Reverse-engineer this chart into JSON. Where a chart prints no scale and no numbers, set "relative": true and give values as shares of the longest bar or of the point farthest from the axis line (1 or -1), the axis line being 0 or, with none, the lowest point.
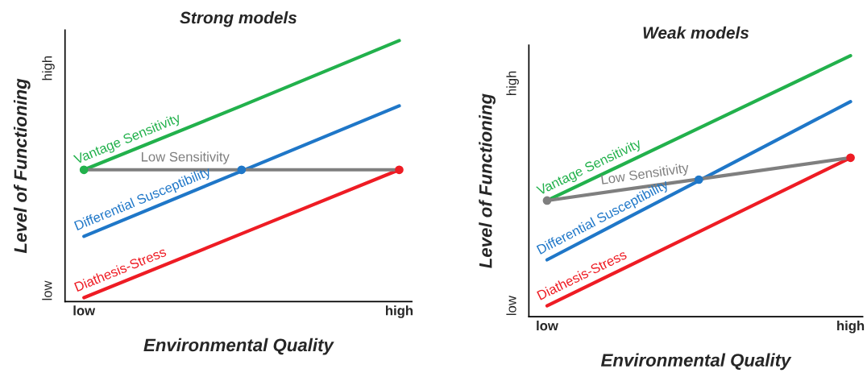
{
  "chart_data": [
    {
      "type": "line",
      "title": "Strong models",
      "xlabel": "Environmental Quality",
      "ylabel": "Level of Functioning",
      "relative": true,
      "categories": [
        "low",
        null,
        "high"
      ],
      "annotations": [
        "low",
        "high"
      ],
      "grid": false,
      "legend": false,
      "line_style": "solid",
      "series": [
        {
          "name": "Vantage Sensitivity",
          "color": "#22b14c",
          "values": [
            0.505,
            0.75,
            1.0
          ]
        },
        {
          "name": "Differential Susceptibility",
          "color": "#1f77c8",
          "values": [
            0.25,
            0.5,
            0.75
          ]
        },
        {
          "name": "Diathesis-Stress",
          "color": "#ee1c24",
          "values": [
            0.015,
            0.26,
            0.505
          ]
        },
        {
          "name": "Low Sensitivity",
          "color": "#7f7f7f",
          "values": [
            0.505,
            0.505,
            0.505
          ]
        },
        {
          "type": "scatter",
          "values": [
            0.505,
            0.505,
            0.505
          ],
          "colors": [
            "#22b14c",
            "#1f77c8",
            "#ee1c24"
          ]
        }
      ]
    },
    {
      "type": "line",
      "title": "Weak models",
      "xlabel": "Environmental Quality",
      "ylabel": "Level of Functioning",
      "relative": true,
      "categories": [
        "low",
        null,
        "high"
      ],
      "annotations": [
        "low",
        "high"
      ],
      "grid": false,
      "legend": false,
      "line_style": "solid",
      "series": [
        {
          "name": "Vantage Sensitivity",
          "color": "#22b14c",
          "values": [
            0.445,
            0.722,
            1.0
          ]
        },
        {
          "name": "Differential Susceptibility",
          "color": "#1f77c8",
          "values": [
            0.218,
            0.521,
            0.824
          ]
        },
        {
          "name": "Diathesis-Stress",
          "color": "#ee1c24",
          "values": [
            0.042,
            0.325,
            0.609
          ]
        },
        {
          "name": "Low Sensitivity",
          "color": "#7f7f7f",
          "values": [
            0.445,
            0.527,
            0.609
          ]
        },
        {
          "type": "scatter",
          "values": [
            0.445,
            0.525,
            0.609
          ],
          "colors": [
            "#7f7f7f",
            "#1f77c8",
            "#ee1c24"
          ]
        }
      ]
    }
  ]
}
